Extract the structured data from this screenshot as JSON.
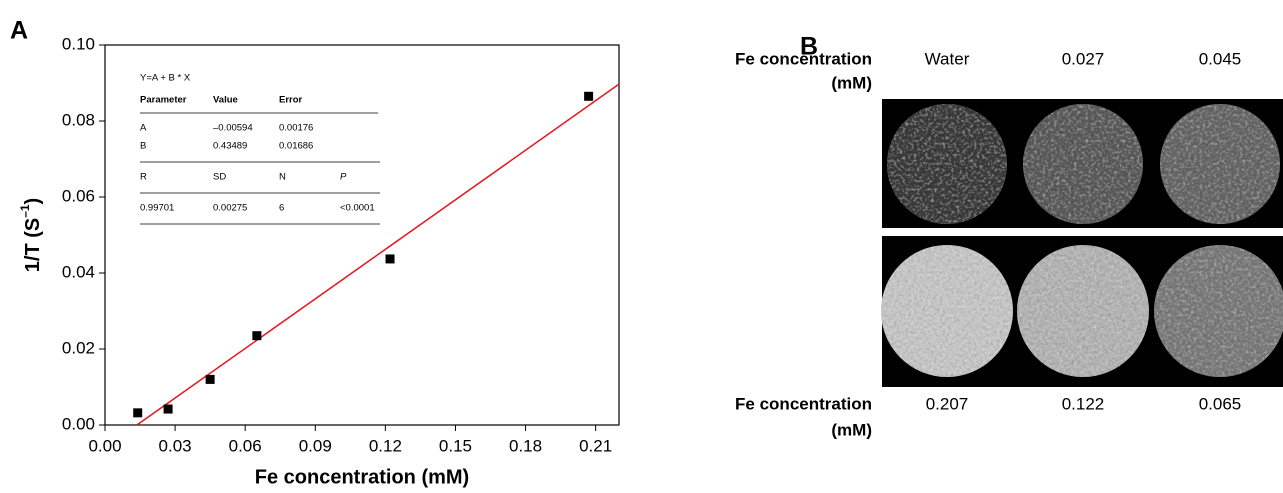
{
  "chart_data": {
    "type": "scatter",
    "panel_label": "A",
    "x_label": "Fe concentration (mM)",
    "y_label": {
      "text": "1/T (S",
      "sup": "–1",
      "end": ")"
    },
    "x": [
      0.014,
      0.027,
      0.045,
      0.065,
      0.122,
      0.207
    ],
    "values": [
      0.0032,
      0.0042,
      0.012,
      0.0235,
      0.0437,
      0.0865
    ],
    "marker_color": "#000000",
    "fit_line": {
      "x": [
        0.01366,
        0.22
      ],
      "values": [
        0,
        0.0897
      ],
      "color": "#e8141b"
    },
    "xlim": [
      0,
      0.22
    ],
    "ylim": [
      0,
      0.1
    ],
    "xticks": [
      {
        "value": 0,
        "label": "0.00"
      },
      {
        "value": 0.03,
        "label": "0.03"
      },
      {
        "value": 0.06,
        "label": "0.06"
      },
      {
        "value": 0.09,
        "label": "0.09"
      },
      {
        "value": 0.12,
        "label": "0.12"
      },
      {
        "value": 0.15,
        "label": "0.15"
      },
      {
        "value": 0.18,
        "label": "0.18"
      },
      {
        "value": 0.21,
        "label": "0.21"
      }
    ],
    "yticks": [
      {
        "value": 0,
        "label": "0.00"
      },
      {
        "value": 0.02,
        "label": "0.02"
      },
      {
        "value": 0.04,
        "label": "0.04"
      },
      {
        "value": 0.06,
        "label": "0.06"
      },
      {
        "value": 0.08,
        "label": "0.08"
      },
      {
        "value": 0.1,
        "label": "0.10"
      }
    ],
    "inset_table": {
      "title": "Y=A + B * X",
      "header": [
        "Parameter",
        "Value",
        "Error"
      ],
      "rows": [
        [
          "A",
          "–0.00594",
          "0.00176"
        ],
        [
          "B",
          "0.43489",
          "0.01686"
        ]
      ],
      "header2": [
        "R",
        "SD",
        "N",
        "P"
      ],
      "rows2": [
        [
          "0.99701",
          "0.00275",
          "6",
          "<0.0001"
        ]
      ]
    }
  },
  "panel_b": {
    "label": "B",
    "top": {
      "label": "Fe concentration",
      "unit": "(mM)",
      "columns": [
        "Water",
        "0.027",
        "0.045"
      ]
    },
    "bottom": {
      "label": "Fe concentration",
      "unit": "(mM)",
      "columns": [
        "0.207",
        "0.122",
        "0.065"
      ]
    }
  }
}
